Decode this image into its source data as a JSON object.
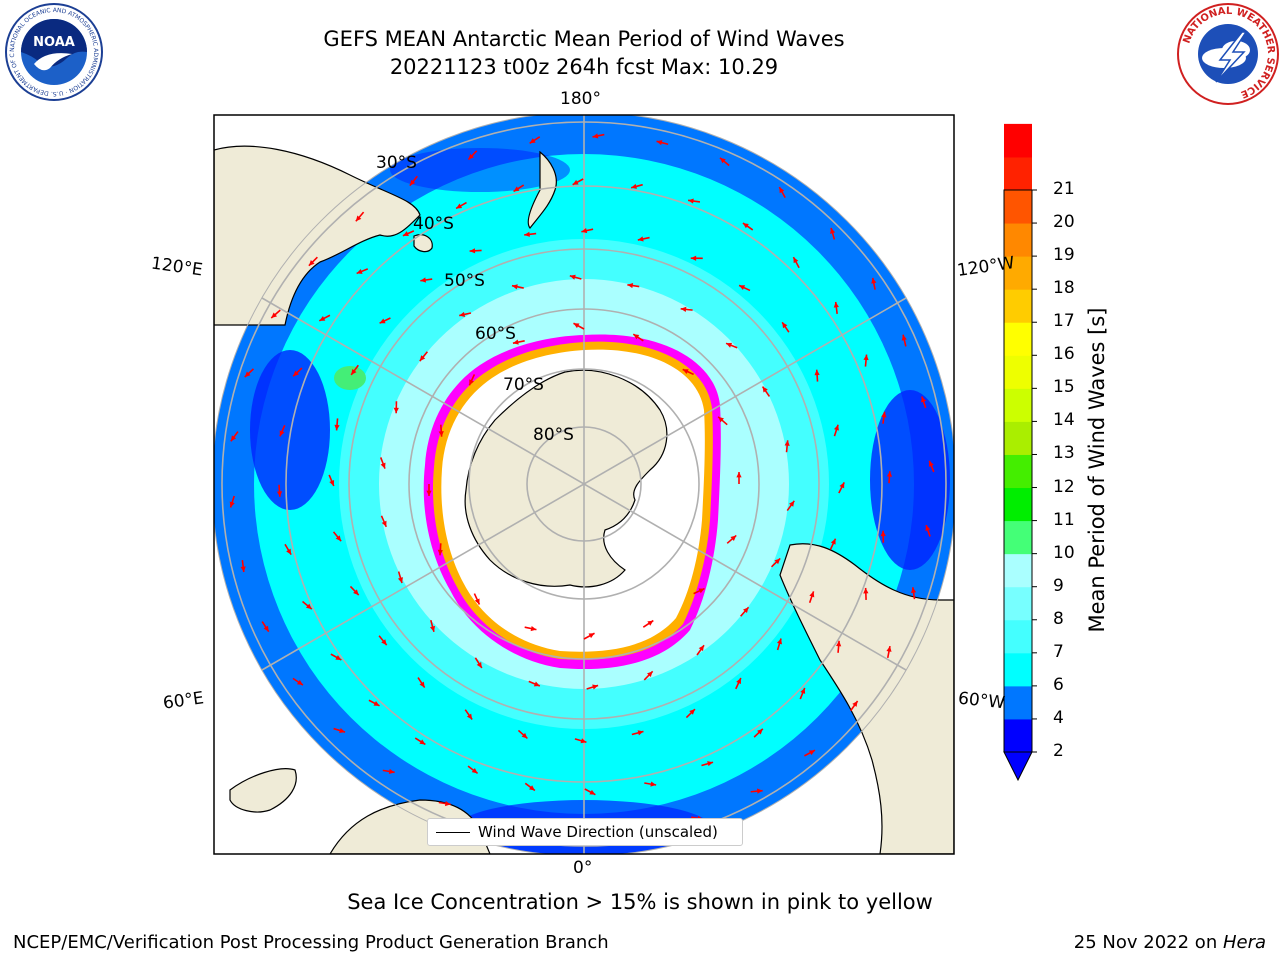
{
  "title": {
    "line1": "GEFS MEAN Antarctic Mean Period of Wind Waves",
    "line2": "20221123 t00z 264h fcst   Max: 10.29"
  },
  "logos": {
    "left": {
      "text": "NOAA",
      "ring_text": "NATIONAL OCEANIC AND ATMOSPHERIC ADMINISTRATION · U.S. DEPARTMENT OF COMMERCE",
      "icon": "noaa-logo"
    },
    "right": {
      "text": "NATIONAL WEATHER SERVICE",
      "icon": "nws-logo"
    }
  },
  "map": {
    "projection": "south polar stereographic",
    "longitude_labels": {
      "top": "180°",
      "bottom": "0°",
      "upper_left": "120°E",
      "upper_right": "120°W",
      "lower_left": "60°E",
      "lower_right": "60°W"
    },
    "latitude_labels": [
      "30°S",
      "40°S",
      "50°S",
      "60°S",
      "70°S",
      "80°S"
    ],
    "colors": {
      "land": "#efebd7",
      "ice_free_sea": "#ffffff",
      "sea_ice_edge": [
        "#ff00ff",
        "#ff66cc",
        "#ffb000",
        "#ffd700"
      ],
      "arrow": "#ff0000",
      "grid": "#b0b0b0"
    },
    "legend": {
      "label": "Wind Wave Direction (unscaled)"
    }
  },
  "colorbar": {
    "label": "Mean Period of Wind Waves [s]",
    "ticks": [
      "2",
      "4",
      "6",
      "7",
      "8",
      "9",
      "10",
      "11",
      "12",
      "13",
      "14",
      "15",
      "16",
      "17",
      "18",
      "19",
      "20",
      "21"
    ],
    "colors": [
      "#0000ff",
      "#0077ff",
      "#00ffff",
      "#44ffff",
      "#77ffff",
      "#aaffff",
      "#44ff77",
      "#00ee00",
      "#44ee00",
      "#aaee00",
      "#ccff00",
      "#eeff00",
      "#ffff00",
      "#ffcc00",
      "#ffaa00",
      "#ff8800",
      "#ff5500",
      "#ff2200",
      "#ff0000"
    ],
    "extend_min_color": "#0000ff"
  },
  "footnote": "Sea Ice Concentration > 15% is shown in pink to yellow",
  "credit": "NCEP/EMC/Verification Post Processing Product Generation Branch",
  "date": {
    "text": "25 Nov 2022 on ",
    "machine": "Hera"
  }
}
